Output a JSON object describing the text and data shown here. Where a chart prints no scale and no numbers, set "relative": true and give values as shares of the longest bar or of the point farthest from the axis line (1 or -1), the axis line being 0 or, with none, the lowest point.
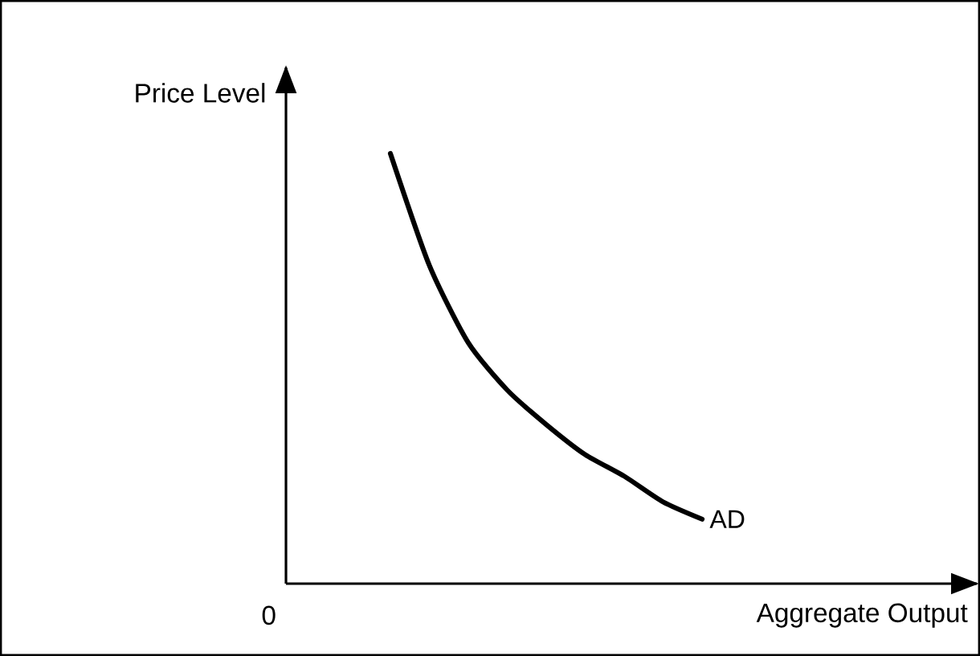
{
  "chart_data": {
    "type": "line",
    "relative": true,
    "xlabel": "Aggregate Output",
    "ylabel": "Price Level",
    "annotations": [
      "0"
    ],
    "categories": [
      null,
      null,
      null,
      null,
      null,
      null,
      null,
      null,
      null
    ],
    "series": [
      {
        "name": "AD",
        "color": "#000000",
        "values": [
          1,
          0.74,
          0.56,
          0.45,
          0.37,
          0.3,
          0.25,
          0.19,
          0.15
        ]
      }
    ]
  }
}
